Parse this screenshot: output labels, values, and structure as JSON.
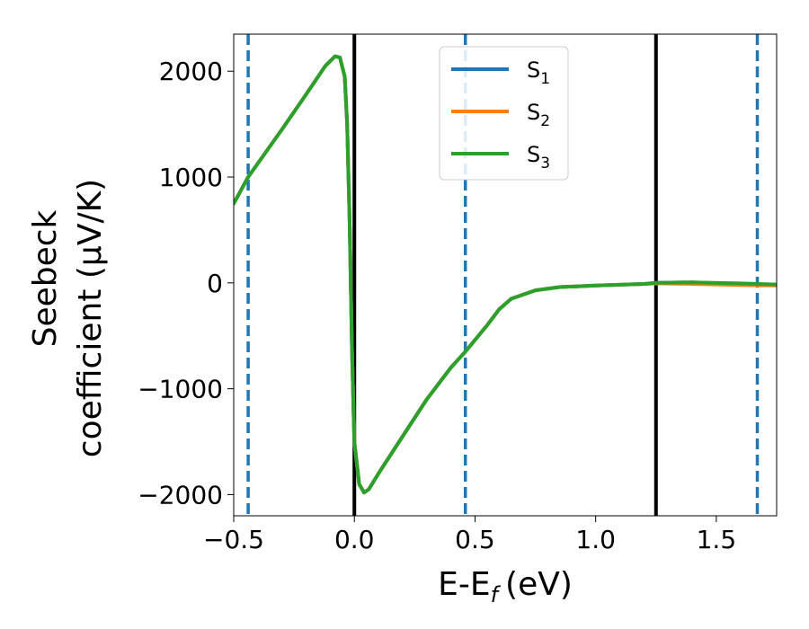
{
  "chart_data": {
    "type": "line",
    "xlabel": "E-E",
    "xlabel_sub": "f",
    "xlabel_unit": "(eV)",
    "ylabel_line1": "Seebeck",
    "ylabel_line2": "coefficient  (μV/K)",
    "xlim": [
      -0.5,
      1.75
    ],
    "ylim": [
      -2200,
      2350
    ],
    "xticks": [
      -0.5,
      0.0,
      0.5,
      1.0,
      1.5
    ],
    "xtick_labels": [
      "−0.5",
      "0.0",
      "0.5",
      "1.0",
      "1.5"
    ],
    "yticks": [
      2000,
      1000,
      0,
      -1000,
      -2000
    ],
    "ytick_labels": [
      "2000",
      "1000",
      "0",
      "−1000",
      "−2000"
    ],
    "legend_position": "top-center",
    "series": [
      {
        "name": "S",
        "sub": "1",
        "color": "#1f77b4",
        "x": [
          -0.5,
          -0.44,
          -0.3,
          -0.2,
          -0.12,
          -0.08,
          -0.06,
          -0.04,
          -0.03,
          -0.02,
          -0.01,
          0.0,
          0.02,
          0.04,
          0.06,
          0.1,
          0.2,
          0.3,
          0.4,
          0.46,
          0.55,
          0.6,
          0.65,
          0.75,
          0.85,
          1.0,
          1.2,
          1.25,
          1.4,
          1.6,
          1.75
        ],
        "y": [
          750,
          1000,
          1450,
          1780,
          2050,
          2140,
          2130,
          1950,
          1500,
          600,
          -600,
          -1500,
          -1900,
          -1980,
          -1950,
          -1800,
          -1450,
          -1100,
          -800,
          -650,
          -400,
          -250,
          -150,
          -70,
          -40,
          -25,
          -10,
          0,
          5,
          -10,
          -20
        ]
      },
      {
        "name": "S",
        "sub": "2",
        "color": "#ff7f0e",
        "x": [
          -0.5,
          -0.44,
          -0.3,
          -0.2,
          -0.12,
          -0.08,
          -0.06,
          -0.04,
          -0.03,
          -0.02,
          -0.01,
          0.0,
          0.02,
          0.04,
          0.06,
          0.1,
          0.2,
          0.3,
          0.4,
          0.46,
          0.55,
          0.6,
          0.65,
          0.75,
          0.85,
          1.0,
          1.2,
          1.25,
          1.4,
          1.6,
          1.75
        ],
        "y": [
          750,
          1000,
          1450,
          1780,
          2050,
          2140,
          2130,
          1950,
          1500,
          600,
          -600,
          -1500,
          -1900,
          -1980,
          -1950,
          -1800,
          -1450,
          -1100,
          -800,
          -650,
          -400,
          -250,
          -150,
          -70,
          -40,
          -25,
          -10,
          -5,
          -10,
          -20,
          -25
        ]
      },
      {
        "name": "S",
        "sub": "3",
        "color": "#2ca02c",
        "x": [
          -0.5,
          -0.44,
          -0.3,
          -0.2,
          -0.12,
          -0.08,
          -0.06,
          -0.04,
          -0.03,
          -0.02,
          -0.01,
          0.0,
          0.02,
          0.04,
          0.06,
          0.1,
          0.2,
          0.3,
          0.4,
          0.46,
          0.55,
          0.6,
          0.65,
          0.75,
          0.85,
          1.0,
          1.2,
          1.25,
          1.4,
          1.6,
          1.75
        ],
        "y": [
          750,
          1000,
          1450,
          1780,
          2050,
          2140,
          2130,
          1950,
          1500,
          600,
          -600,
          -1500,
          -1900,
          -1980,
          -1950,
          -1800,
          -1450,
          -1100,
          -800,
          -650,
          -400,
          -250,
          -150,
          -70,
          -40,
          -25,
          -10,
          0,
          5,
          -5,
          -15
        ]
      }
    ],
    "vlines": [
      {
        "x": 0.0,
        "style": "solid",
        "color": "#000000"
      },
      {
        "x": 1.25,
        "style": "solid",
        "color": "#000000"
      },
      {
        "x": -0.44,
        "style": "dashed",
        "color": "#1f77b4"
      },
      {
        "x": 0.46,
        "style": "dashed",
        "color": "#1f77b4"
      },
      {
        "x": 1.67,
        "style": "dashed",
        "color": "#1f77b4"
      }
    ]
  }
}
